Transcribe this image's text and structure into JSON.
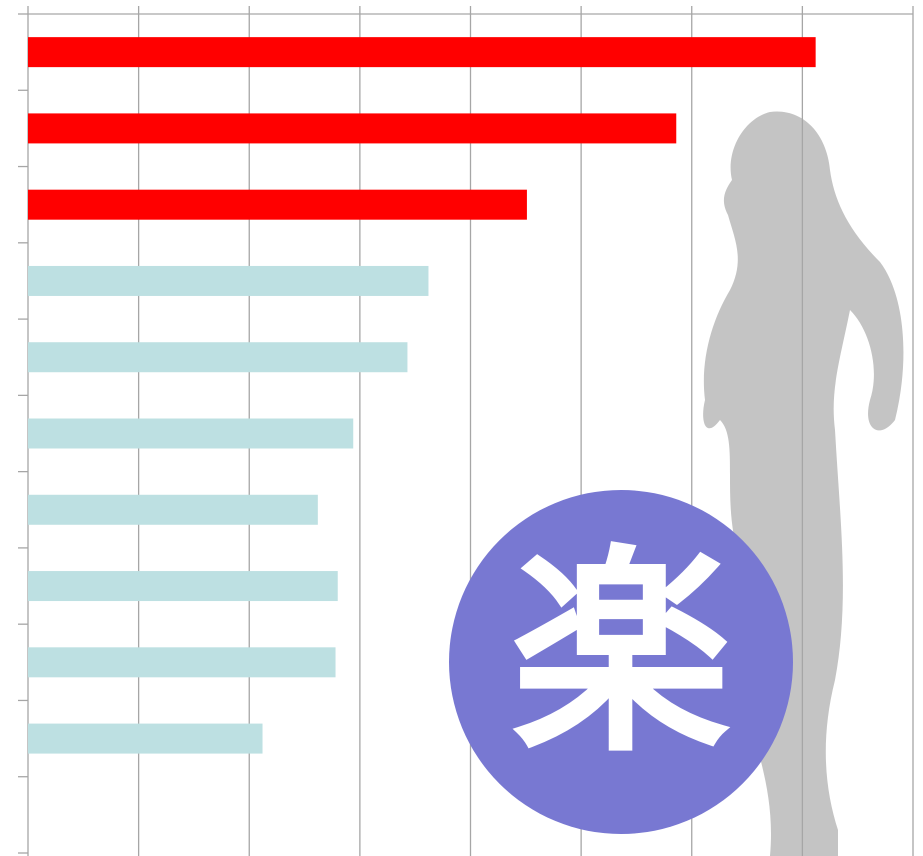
{
  "chart_data": {
    "type": "hbar",
    "categories": [
      null,
      null,
      null,
      null,
      null,
      null,
      null,
      null,
      null,
      null,
      null
    ],
    "values": [
      7.12,
      5.86,
      4.51,
      3.62,
      3.43,
      2.94,
      2.62,
      2.8,
      2.78,
      2.12,
      null
    ],
    "colors": [
      "#ff0000",
      "#ff0000",
      "#ff0000",
      "#bde0e2",
      "#bde0e2",
      "#bde0e2",
      "#bde0e2",
      "#bde0e2",
      "#bde0e2",
      "#bde0e2",
      "#bde0e2"
    ],
    "xlim": [
      0,
      8
    ],
    "xticks": [
      0,
      1,
      2,
      3,
      4,
      5,
      6,
      7,
      8
    ],
    "grid": true,
    "badge_text": "楽",
    "badge_color": "#7878d2"
  }
}
